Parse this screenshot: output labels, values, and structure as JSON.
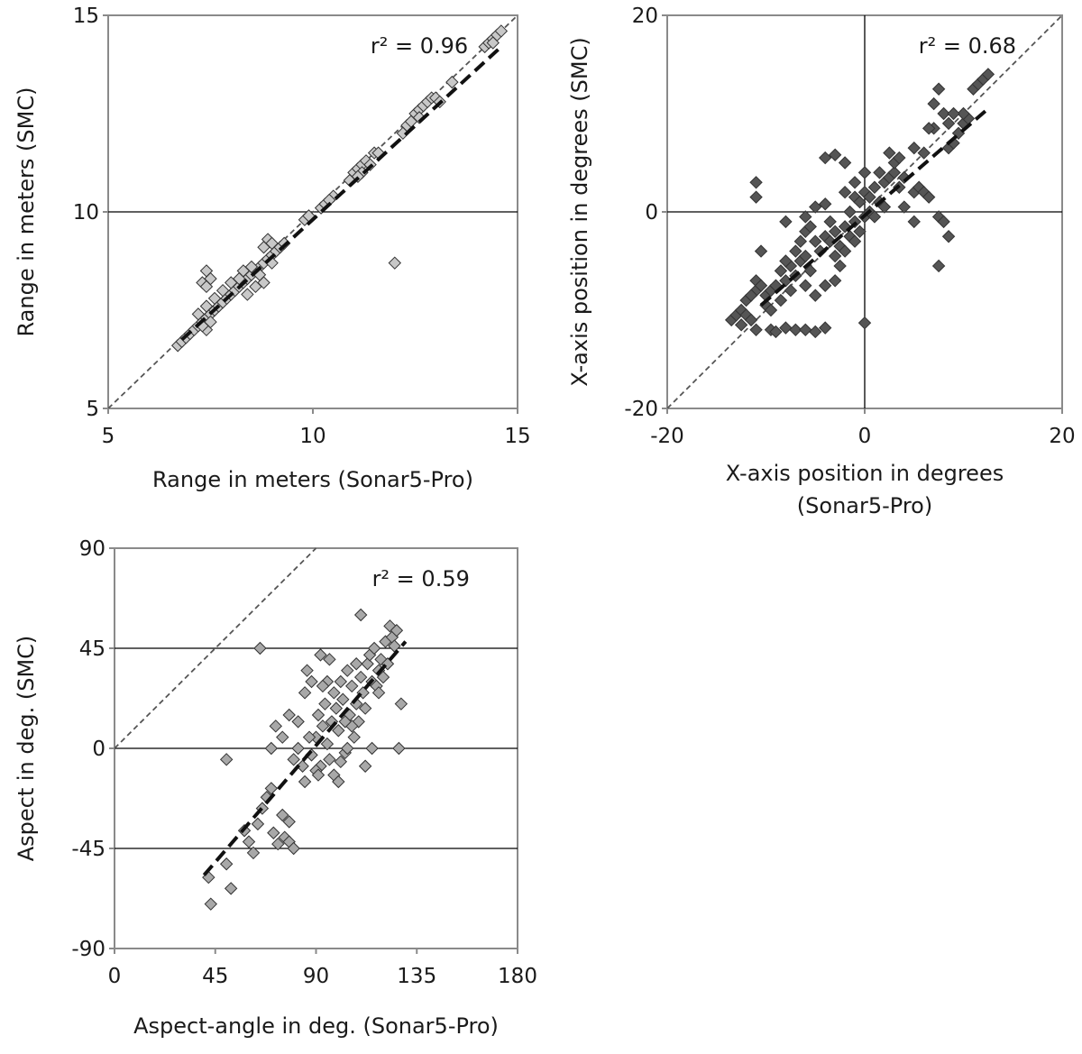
{
  "chart_data": [
    {
      "type": "scatter",
      "xlabel": "Range in meters (Sonar5-Pro)",
      "xlabel_lines": [
        "Range in meters (Sonar5-Pro)"
      ],
      "ylabel": "Range in meters (SMC)",
      "xlim": [
        5,
        15
      ],
      "ylim": [
        5,
        15
      ],
      "xticks": [
        "5",
        "10",
        "15"
      ],
      "yticks": [
        "5",
        "10",
        "15"
      ],
      "xgrid_values": [],
      "ygrid_values": [
        10
      ],
      "annotation": "r² = 0.96",
      "marker_color": "#c8c8c8",
      "identity_line": true,
      "fit_line": {
        "x": [
          6.8,
          14.6
        ],
        "y": [
          6.75,
          14.2
        ]
      },
      "points": [
        [
          6.7,
          6.6
        ],
        [
          6.8,
          6.7
        ],
        [
          6.9,
          6.8
        ],
        [
          7.0,
          6.9
        ],
        [
          7.1,
          7.0
        ],
        [
          7.2,
          7.1
        ],
        [
          7.3,
          7.2
        ],
        [
          7.4,
          7.3
        ],
        [
          7.5,
          7.4
        ],
        [
          7.6,
          7.5
        ],
        [
          7.2,
          7.4
        ],
        [
          7.4,
          7.6
        ],
        [
          7.7,
          7.6
        ],
        [
          7.8,
          7.7
        ],
        [
          7.9,
          7.8
        ],
        [
          8.0,
          7.9
        ],
        [
          8.1,
          8.0
        ],
        [
          8.2,
          8.1
        ],
        [
          8.3,
          8.2
        ],
        [
          8.4,
          8.3
        ],
        [
          8.5,
          8.4
        ],
        [
          8.6,
          8.5
        ],
        [
          8.7,
          8.6
        ],
        [
          8.8,
          8.7
        ],
        [
          8.9,
          8.8
        ],
        [
          9.0,
          8.9
        ],
        [
          9.1,
          9.0
        ],
        [
          8.8,
          9.1
        ],
        [
          8.9,
          9.3
        ],
        [
          9.0,
          9.2
        ],
        [
          8.3,
          8.5
        ],
        [
          8.5,
          8.6
        ],
        [
          8.7,
          8.4
        ],
        [
          8.2,
          8.3
        ],
        [
          8.0,
          8.2
        ],
        [
          7.8,
          8.0
        ],
        [
          7.6,
          7.8
        ],
        [
          7.5,
          7.2
        ],
        [
          7.4,
          7.0
        ],
        [
          7.3,
          7.1
        ],
        [
          7.3,
          8.2
        ],
        [
          7.4,
          8.5
        ],
        [
          7.5,
          8.3
        ],
        [
          7.4,
          8.1
        ],
        [
          8.6,
          8.1
        ],
        [
          8.4,
          7.9
        ],
        [
          8.8,
          8.2
        ],
        [
          9.2,
          9.1
        ],
        [
          9.3,
          9.2
        ],
        [
          9.0,
          8.7
        ],
        [
          9.8,
          9.8
        ],
        [
          9.9,
          9.9
        ],
        [
          10.2,
          10.1
        ],
        [
          10.3,
          10.2
        ],
        [
          10.5,
          10.4
        ],
        [
          10.4,
          10.3
        ],
        [
          11.0,
          11.0
        ],
        [
          11.1,
          11.1
        ],
        [
          11.2,
          11.2
        ],
        [
          11.3,
          11.3
        ],
        [
          11.4,
          11.2
        ],
        [
          11.5,
          11.5
        ],
        [
          11.2,
          11.0
        ],
        [
          11.1,
          10.9
        ],
        [
          11.6,
          11.5
        ],
        [
          10.9,
          10.8
        ],
        [
          12.0,
          8.7
        ],
        [
          12.2,
          12.0
        ],
        [
          12.3,
          12.2
        ],
        [
          12.4,
          12.3
        ],
        [
          12.5,
          12.5
        ],
        [
          12.6,
          12.6
        ],
        [
          12.7,
          12.7
        ],
        [
          12.8,
          12.8
        ],
        [
          12.9,
          12.9
        ],
        [
          13.0,
          12.9
        ],
        [
          13.1,
          12.8
        ],
        [
          13.4,
          13.3
        ],
        [
          14.2,
          14.2
        ],
        [
          14.3,
          14.3
        ],
        [
          14.4,
          14.4
        ],
        [
          14.5,
          14.5
        ],
        [
          14.6,
          14.6
        ],
        [
          14.4,
          14.3
        ],
        [
          12.6,
          12.4
        ]
      ]
    },
    {
      "type": "scatter",
      "xlabel": "X-axis position in degrees (Sonar5-Pro)",
      "xlabel_lines": [
        "X-axis position in degrees",
        "(Sonar5-Pro)"
      ],
      "ylabel": "X-axis position in degrees (SMC)",
      "xlim": [
        -20,
        20
      ],
      "ylim": [
        -20,
        20
      ],
      "xticks": [
        "-20",
        "0",
        "20"
      ],
      "yticks": [
        "-20",
        "0",
        "20"
      ],
      "xgrid_values": [
        0
      ],
      "ygrid_values": [
        0
      ],
      "annotation": "r² = 0.68",
      "marker_color": "#555555",
      "identity_line": true,
      "fit_line": {
        "x": [
          -10.5,
          12.5
        ],
        "y": [
          -9.5,
          10.5
        ]
      },
      "points": [
        [
          -13.5,
          -11.0
        ],
        [
          -13.0,
          -10.5
        ],
        [
          -12.5,
          -10.0
        ],
        [
          -12.0,
          -10.5
        ],
        [
          -11.5,
          -11.0
        ],
        [
          -11.0,
          -12.0
        ],
        [
          -11.0,
          -7.0
        ],
        [
          -11.0,
          -8.0
        ],
        [
          -10.5,
          -7.5
        ],
        [
          -10.0,
          -8.5
        ],
        [
          -11.0,
          3.0
        ],
        [
          -11.0,
          1.5
        ],
        [
          -10.5,
          -4.0
        ],
        [
          -9.5,
          -12.0
        ],
        [
          -9.0,
          -12.2
        ],
        [
          -8.0,
          -11.8
        ],
        [
          -7.0,
          -12.0
        ],
        [
          -6.0,
          -12.0
        ],
        [
          -5.0,
          -12.2
        ],
        [
          -4.0,
          -11.8
        ],
        [
          -10.0,
          -9.5
        ],
        [
          -9.5,
          -8.0
        ],
        [
          -9.0,
          -7.5
        ],
        [
          -8.5,
          -6.0
        ],
        [
          -8.0,
          -7.0
        ],
        [
          -7.5,
          -5.5
        ],
        [
          -7.0,
          -6.5
        ],
        [
          -6.5,
          -5.0
        ],
        [
          -6.0,
          -4.5
        ],
        [
          -5.5,
          -6.0
        ],
        [
          -8.0,
          -1.0
        ],
        [
          -6.0,
          -0.5
        ],
        [
          -5.0,
          0.5
        ],
        [
          -4.0,
          5.5
        ],
        [
          -3.0,
          5.8
        ],
        [
          -2.0,
          5.0
        ],
        [
          -4.0,
          0.8
        ],
        [
          -3.5,
          -1.0
        ],
        [
          -3.0,
          -2.0
        ],
        [
          -2.5,
          -3.5
        ],
        [
          -5.0,
          -3.0
        ],
        [
          -4.5,
          -4.0
        ],
        [
          -4.0,
          -2.5
        ],
        [
          -3.5,
          -3.0
        ],
        [
          -2.0,
          -1.5
        ],
        [
          -1.5,
          -2.5
        ],
        [
          -1.0,
          -1.0
        ],
        [
          -0.5,
          -2.0
        ],
        [
          0.0,
          -0.5
        ],
        [
          0.5,
          0.0
        ],
        [
          -7.0,
          -4.0
        ],
        [
          -6.5,
          -3.0
        ],
        [
          -6.0,
          -2.0
        ],
        [
          -5.5,
          -1.5
        ],
        [
          -2.0,
          2.0
        ],
        [
          -1.0,
          1.5
        ],
        [
          -0.5,
          1.0
        ],
        [
          0.0,
          2.0
        ],
        [
          0.5,
          1.5
        ],
        [
          1.0,
          2.5
        ],
        [
          1.5,
          1.0
        ],
        [
          2.0,
          3.0
        ],
        [
          2.5,
          3.5
        ],
        [
          3.0,
          4.0
        ],
        [
          3.5,
          2.5
        ],
        [
          4.0,
          3.5
        ],
        [
          2.5,
          6.0
        ],
        [
          3.0,
          5.0
        ],
        [
          0.0,
          4.0
        ],
        [
          -1.0,
          3.0
        ],
        [
          -1.5,
          0.0
        ],
        [
          -2.5,
          -5.5
        ],
        [
          -3.0,
          -7.0
        ],
        [
          -4.0,
          -7.5
        ],
        [
          -5.0,
          -8.5
        ],
        [
          -8.5,
          -9.0
        ],
        [
          -9.5,
          -10.0
        ],
        [
          -12.0,
          -9.0
        ],
        [
          -11.5,
          -8.5
        ],
        [
          -12.5,
          -11.5
        ],
        [
          0.0,
          -11.3
        ],
        [
          5.0,
          2.0
        ],
        [
          5.5,
          2.5
        ],
        [
          6.0,
          2.0
        ],
        [
          5.0,
          6.5
        ],
        [
          6.0,
          6.0
        ],
        [
          7.0,
          8.5
        ],
        [
          7.0,
          11.0
        ],
        [
          7.5,
          12.5
        ],
        [
          8.0,
          10.0
        ],
        [
          6.5,
          1.5
        ],
        [
          7.5,
          -0.5
        ],
        [
          8.0,
          -1.0
        ],
        [
          8.5,
          -2.5
        ],
        [
          7.5,
          -5.5
        ],
        [
          5.0,
          -1.0
        ],
        [
          4.0,
          0.5
        ],
        [
          8.5,
          6.5
        ],
        [
          9.0,
          7.0
        ],
        [
          9.5,
          8.0
        ],
        [
          10.0,
          9.0
        ],
        [
          10.5,
          9.5
        ],
        [
          11.0,
          12.5
        ],
        [
          11.5,
          13.0
        ],
        [
          12.0,
          13.5
        ],
        [
          12.5,
          14.0
        ],
        [
          10.0,
          10.0
        ],
        [
          9.0,
          10.0
        ],
        [
          8.5,
          9.0
        ],
        [
          6.5,
          8.5
        ],
        [
          -3.0,
          -4.5
        ],
        [
          -2.0,
          -4.0
        ],
        [
          -1.0,
          -3.0
        ],
        [
          1.0,
          -0.5
        ],
        [
          2.0,
          0.5
        ],
        [
          1.5,
          4.0
        ],
        [
          3.5,
          5.5
        ],
        [
          -6.0,
          -7.5
        ],
        [
          -7.5,
          -8.0
        ],
        [
          -8.0,
          -5.0
        ]
      ]
    },
    {
      "type": "scatter",
      "xlabel": "Aspect-angle in deg. (Sonar5-Pro)",
      "xlabel_lines": [
        "Aspect-angle in deg. (Sonar5-Pro)"
      ],
      "ylabel": "Aspect in deg. (SMC)",
      "xlim": [
        0,
        180
      ],
      "ylim": [
        -90,
        90
      ],
      "xticks": [
        "0",
        "45",
        "90",
        "135",
        "180"
      ],
      "yticks": [
        "-90",
        "-45",
        "0",
        "45",
        "90"
      ],
      "xgrid_values": [],
      "ygrid_values": [
        -45,
        0,
        45
      ],
      "annotation": "r² = 0.59",
      "marker_color": "#a8a8a8",
      "identity_line": true,
      "fit_line": {
        "x": [
          40,
          130
        ],
        "y": [
          -57,
          48
        ]
      },
      "points": [
        [
          42,
          -58
        ],
        [
          43,
          -70
        ],
        [
          50,
          -52
        ],
        [
          52,
          -63
        ],
        [
          50,
          -5
        ],
        [
          58,
          -37
        ],
        [
          60,
          -42
        ],
        [
          62,
          -47
        ],
        [
          64,
          -34
        ],
        [
          66,
          -27
        ],
        [
          65,
          45
        ],
        [
          68,
          -22
        ],
        [
          70,
          -18
        ],
        [
          71,
          -38
        ],
        [
          73,
          -43
        ],
        [
          75,
          -30
        ],
        [
          76,
          -40
        ],
        [
          78,
          -42
        ],
        [
          80,
          -45
        ],
        [
          78,
          -33
        ],
        [
          70,
          0
        ],
        [
          72,
          10
        ],
        [
          75,
          5
        ],
        [
          78,
          15
        ],
        [
          80,
          -5
        ],
        [
          82,
          0
        ],
        [
          84,
          -8
        ],
        [
          85,
          25
        ],
        [
          86,
          35
        ],
        [
          88,
          30
        ],
        [
          88,
          -3
        ],
        [
          90,
          5
        ],
        [
          91,
          15
        ],
        [
          92,
          -8
        ],
        [
          93,
          10
        ],
        [
          94,
          20
        ],
        [
          95,
          2
        ],
        [
          96,
          40
        ],
        [
          97,
          12
        ],
        [
          98,
          -12
        ],
        [
          99,
          18
        ],
        [
          100,
          8
        ],
        [
          101,
          30
        ],
        [
          102,
          22
        ],
        [
          103,
          -2
        ],
        [
          104,
          35
        ],
        [
          105,
          15
        ],
        [
          106,
          28
        ],
        [
          107,
          5
        ],
        [
          108,
          20
        ],
        [
          109,
          12
        ],
        [
          110,
          32
        ],
        [
          111,
          25
        ],
        [
          112,
          18
        ],
        [
          113,
          38
        ],
        [
          114,
          42
        ],
        [
          115,
          30
        ],
        [
          116,
          45
        ],
        [
          117,
          28
        ],
        [
          118,
          35
        ],
        [
          119,
          40
        ],
        [
          120,
          32
        ],
        [
          121,
          48
        ],
        [
          122,
          38
        ],
        [
          123,
          55
        ],
        [
          124,
          50
        ],
        [
          125,
          46
        ],
        [
          126,
          53
        ],
        [
          127,
          0
        ],
        [
          128,
          20
        ],
        [
          110,
          60
        ],
        [
          112,
          -8
        ],
        [
          100,
          -15
        ],
        [
          90,
          -10
        ],
        [
          85,
          -15
        ],
        [
          82,
          12
        ],
        [
          95,
          30
        ],
        [
          92,
          42
        ],
        [
          106,
          10
        ],
        [
          115,
          0
        ],
        [
          118,
          25
        ],
        [
          108,
          38
        ],
        [
          103,
          12
        ],
        [
          98,
          25
        ],
        [
          96,
          -5
        ],
        [
          91,
          -12
        ],
        [
          87,
          5
        ],
        [
          93,
          28
        ],
        [
          101,
          -6
        ],
        [
          104,
          0
        ]
      ]
    }
  ]
}
